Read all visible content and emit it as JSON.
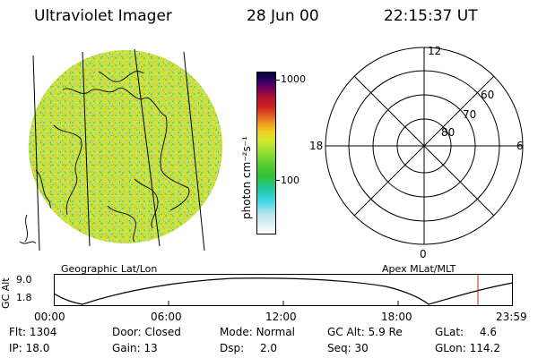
{
  "header": {
    "instrument": "Ultraviolet Imager",
    "date": "28 Jun 00",
    "time": "22:15:37 UT"
  },
  "image_panel": {
    "label": "Geographic Lat/Lon"
  },
  "colorbar": {
    "unit_label": "photon cm⁻²s⁻¹",
    "ticks": [
      "1000",
      "100"
    ],
    "scale": "log",
    "colors": [
      "#ffffff",
      "#d8f0f4",
      "#b8e6ee",
      "#40d8e8",
      "#20c8a0",
      "#30c030",
      "#60d030",
      "#a0e030",
      "#d8e830",
      "#f0d020",
      "#f0a020",
      "#e06020",
      "#d02020",
      "#b01030",
      "#700060",
      "#300060",
      "#000040"
    ]
  },
  "polar_panel": {
    "label": "Apex MLat/MLT",
    "mlt_labels": {
      "top": "12",
      "bottom": "0",
      "left": "18",
      "right": "6"
    },
    "lat_labels": [
      "60",
      "70",
      "80"
    ]
  },
  "orbit_plot": {
    "ylabel": "GC Alt",
    "yticks": [
      "9.0",
      "1.8"
    ],
    "xticks": [
      "00:00",
      "06:00",
      "12:00",
      "18:00",
      "23:59"
    ],
    "marker_color": "#d02020"
  },
  "info": {
    "flt_label": "Flt:",
    "flt_value": "1304",
    "ip_label": "IP:",
    "ip_value": "18.0",
    "door_label": "Door:",
    "door_value": "Closed",
    "gain_label": "Gain:",
    "gain_value": "13",
    "mode_label": "Mode:",
    "mode_value": "Normal",
    "dsp_label": "Dsp:",
    "dsp_value": "2.0",
    "gcalt_label": "GC Alt:",
    "gcalt_value": "5.9 Re",
    "seq_label": "Seq:",
    "seq_value": "30",
    "glat_label": "GLat:",
    "glat_value": "4.6",
    "glon_label": "GLon:",
    "glon_value": "114.2"
  }
}
